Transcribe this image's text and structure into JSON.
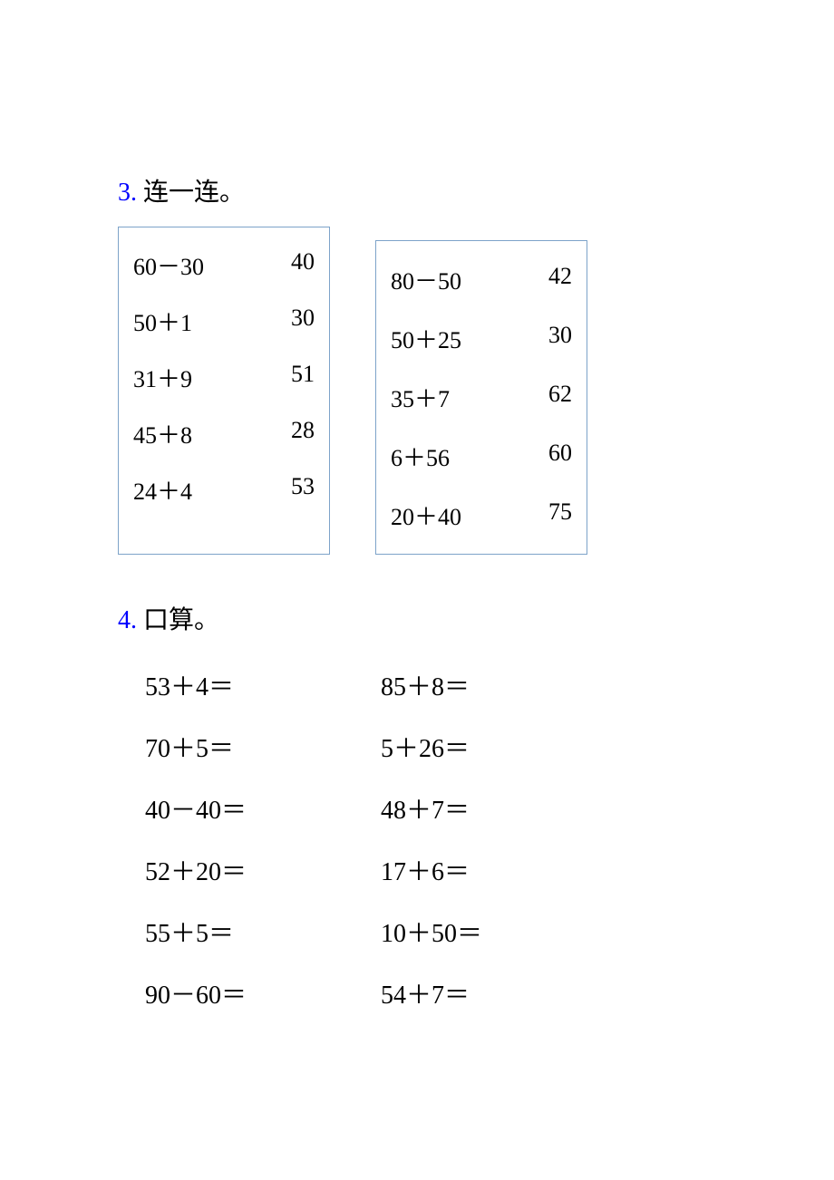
{
  "colors": {
    "question_number": "#0000ff",
    "text": "#000000",
    "box_border": "#7da3c9",
    "background": "#ffffff"
  },
  "typography": {
    "base_fontsize": 28,
    "font_family": "Times New Roman, serif"
  },
  "q3": {
    "number": "3.",
    "title": "连一连。",
    "box1": {
      "rows": [
        {
          "expr": "60－30",
          "ans": "40"
        },
        {
          "expr": "50＋1",
          "ans": "30"
        },
        {
          "expr": "31＋9",
          "ans": "51"
        },
        {
          "expr": "45＋8",
          "ans": "28"
        },
        {
          "expr": "24＋4",
          "ans": "53"
        }
      ]
    },
    "box2": {
      "rows": [
        {
          "expr": "80－50",
          "ans": "42"
        },
        {
          "expr": "50＋25",
          "ans": "30"
        },
        {
          "expr": "35＋7",
          "ans": "62"
        },
        {
          "expr": "6＋56",
          "ans": "60"
        },
        {
          "expr": "20＋40",
          "ans": "75"
        }
      ]
    }
  },
  "q4": {
    "number": "4.",
    "title": "口算。",
    "rows": [
      {
        "c1": "53＋4＝",
        "c2": "85＋8＝"
      },
      {
        "c1": "70＋5＝",
        "c2": "5＋26＝"
      },
      {
        "c1": "40－40＝",
        "c2": "48＋7＝"
      },
      {
        "c1": "52＋20＝",
        "c2": "17＋6＝"
      },
      {
        "c1": "55＋5＝",
        "c2": "10＋50＝"
      },
      {
        "c1": "90－60＝",
        "c2": "54＋7＝"
      }
    ]
  }
}
